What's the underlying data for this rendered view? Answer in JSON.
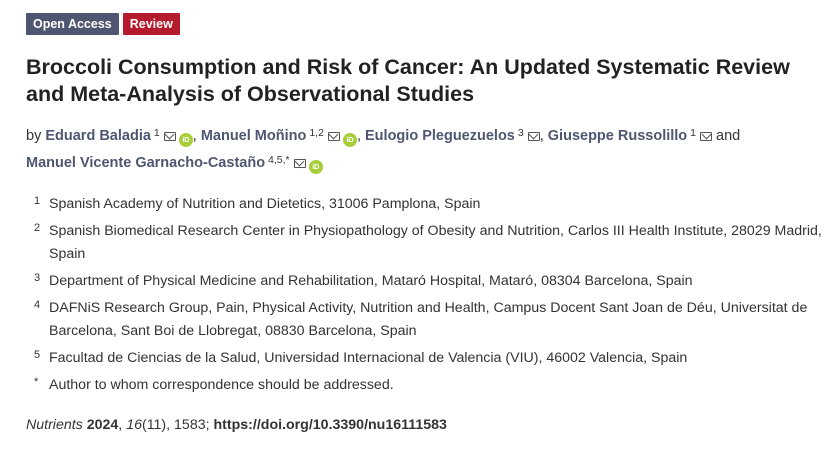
{
  "badges": {
    "open_access": "Open Access",
    "review": "Review"
  },
  "title": "Broccoli Consumption and Risk of Cancer: An Updated Systematic Review and Meta-Analysis of Observational Studies",
  "authors": {
    "by_label": "by",
    "list": [
      {
        "name": "Eduard Baladia",
        "aff": "1",
        "email_icon": "mail-icon",
        "orcid": true
      },
      {
        "name": "Manuel Moñino",
        "aff": "1,2",
        "email_icon": "mail-icon",
        "orcid": true
      },
      {
        "name": "Eulogio Pleguezuelos",
        "aff": "3",
        "email_icon": "mail-icon",
        "orcid": false
      },
      {
        "name": "Giuseppe Russolillo",
        "aff": "1",
        "email_icon": "mail-icon",
        "orcid": false
      },
      {
        "name": "Manuel Vicente Garnacho-Castaño",
        "aff": "4,5,*",
        "email_icon": "mail-icon",
        "orcid": true
      }
    ],
    "and_label": "and",
    "orcid_text": "iD"
  },
  "affiliations": [
    {
      "num": "1",
      "text": "Spanish Academy of Nutrition and Dietetics, 31006 Pamplona, Spain"
    },
    {
      "num": "2",
      "text": "Spanish Biomedical Research Center in Physiopathology of Obesity and Nutrition, Carlos III Health Institute, 28029 Madrid, Spain"
    },
    {
      "num": "3",
      "text": "Department of Physical Medicine and Rehabilitation, Mataró Hospital, Mataró, 08304 Barcelona, Spain"
    },
    {
      "num": "4",
      "text": "DAFNiS Research Group, Pain, Physical Activity, Nutrition and Health, Campus Docent Sant Joan de Déu, Universitat de Barcelona, Sant Boi de Llobregat, 08830 Barcelona, Spain"
    },
    {
      "num": "5",
      "text": "Facultad de Ciencias de la Salud, Universidad Internacional de Valencia (VIU), 46002 Valencia, Spain"
    },
    {
      "num": "*",
      "text": "Author to whom correspondence should be addressed."
    }
  ],
  "citation": {
    "journal": "Nutrients",
    "year": "2024",
    "volume": "16",
    "issue": "(11)",
    "pages": "1583",
    "doi": "https://doi.org/10.3390/nu16111583"
  },
  "colors": {
    "open_access_badge": "#4f5671",
    "review_badge": "#b51b2c",
    "author_link": "#4f5671",
    "orcid": "#a6ce39"
  }
}
